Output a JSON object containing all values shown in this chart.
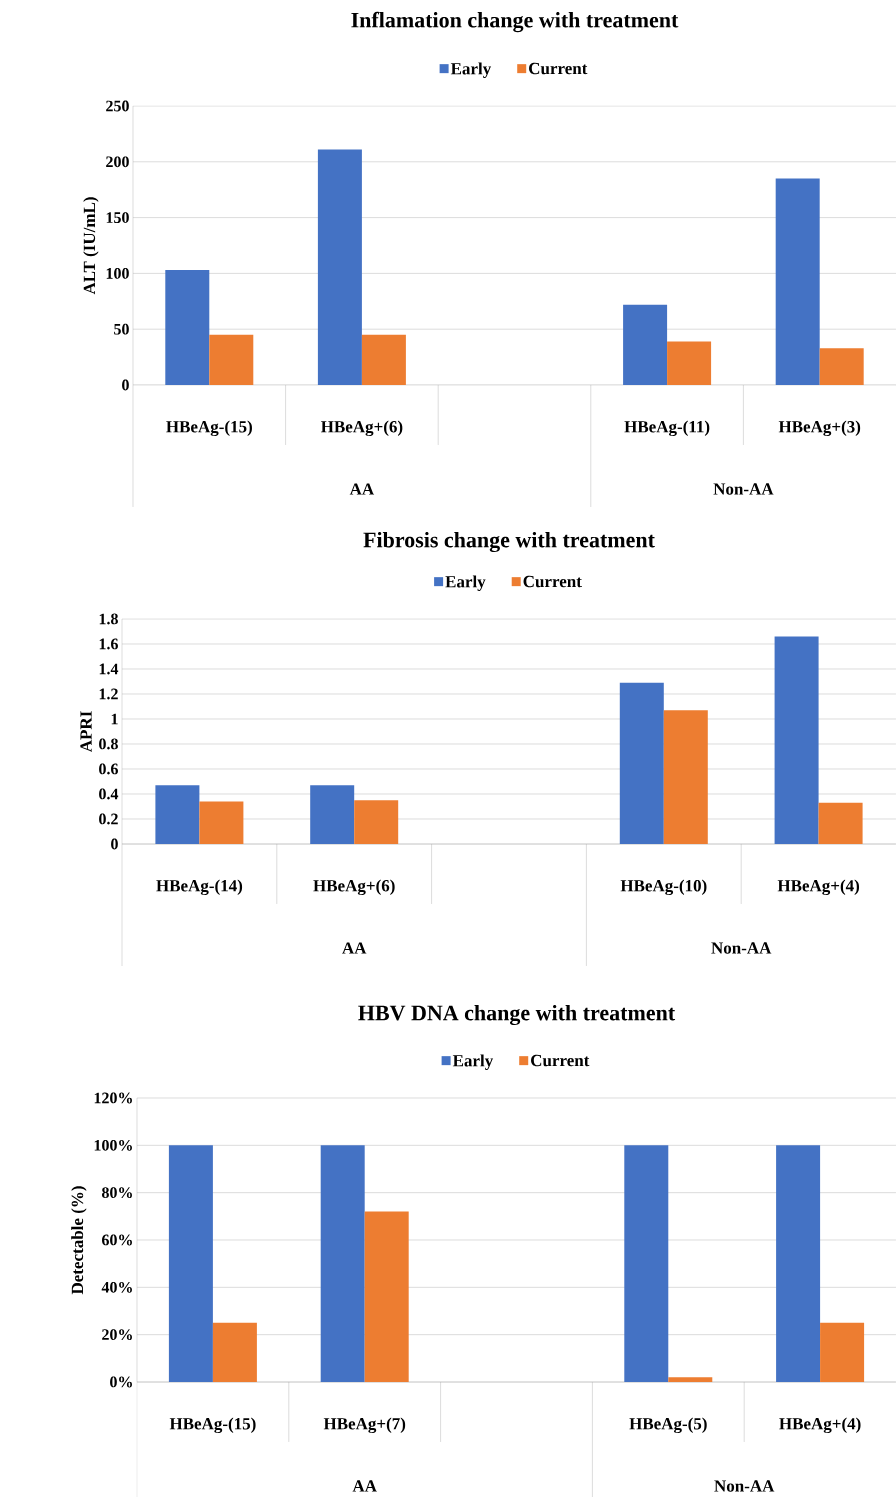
{
  "chart_data": [
    {
      "type": "bar",
      "title": "Inflamation change with treatment",
      "ylabel": "ALT (IU/mL)",
      "categories": [
        "HBeAg-(15)",
        "HBeAg+(6)",
        null,
        "HBeAg-(11)",
        "HBeAg+(3)"
      ],
      "series": [
        {
          "name": "Early",
          "color": "#4472c4",
          "values": [
            103,
            211,
            null,
            72,
            185
          ]
        },
        {
          "name": "Current",
          "color": "#ed7d31",
          "values": [
            45,
            45,
            null,
            39,
            33
          ]
        }
      ],
      "ylim": [
        0,
        250
      ],
      "yticks": [
        0,
        50,
        100,
        150,
        200,
        250
      ],
      "grid": "y",
      "legend": "top",
      "annotations": [
        "AA",
        "Non-AA"
      ]
    },
    {
      "type": "bar",
      "title": "Fibrosis change with treatment",
      "ylabel": "APRI",
      "categories": [
        "HBeAg-(14)",
        "HBeAg+(6)",
        null,
        "HBeAg-(10)",
        "HBeAg+(4)"
      ],
      "series": [
        {
          "name": "Early",
          "color": "#4472c4",
          "values": [
            0.47,
            0.47,
            null,
            1.29,
            1.66
          ]
        },
        {
          "name": "Current",
          "color": "#ed7d31",
          "values": [
            0.34,
            0.35,
            null,
            1.07,
            0.33
          ]
        }
      ],
      "ylim": [
        0,
        1.8
      ],
      "yticks": [
        0,
        0.2,
        0.4,
        0.6,
        0.8,
        1,
        1.2,
        1.4,
        1.6,
        1.8
      ],
      "grid": "y",
      "legend": "top",
      "annotations": [
        "AA",
        "Non-AA"
      ]
    },
    {
      "type": "bar",
      "title": "HBV DNA change with treatment",
      "ylabel": "Detectable (%)",
      "categories": [
        "HBeAg-(15)",
        "HBeAg+(7)",
        null,
        "HBeAg-(5)",
        "HBeAg+(4)"
      ],
      "series": [
        {
          "name": "Early",
          "color": "#4472c4",
          "values": [
            100,
            100,
            null,
            100,
            100
          ]
        },
        {
          "name": "Current",
          "color": "#ed7d31",
          "values": [
            25,
            72,
            null,
            2,
            25
          ]
        }
      ],
      "ylim": [
        0,
        120
      ],
      "yticks": [
        {
          "value": 0,
          "label": "0%"
        },
        {
          "value": 20,
          "label": "20%"
        },
        {
          "value": 40,
          "label": "40%"
        },
        {
          "value": 60,
          "label": "60%"
        },
        {
          "value": 80,
          "label": "80%"
        },
        {
          "value": 100,
          "label": "100%"
        },
        {
          "value": 120,
          "label": "120%"
        }
      ],
      "grid": "y",
      "legend": "top",
      "annotations": [
        "AA",
        "Non-AA"
      ]
    }
  ]
}
